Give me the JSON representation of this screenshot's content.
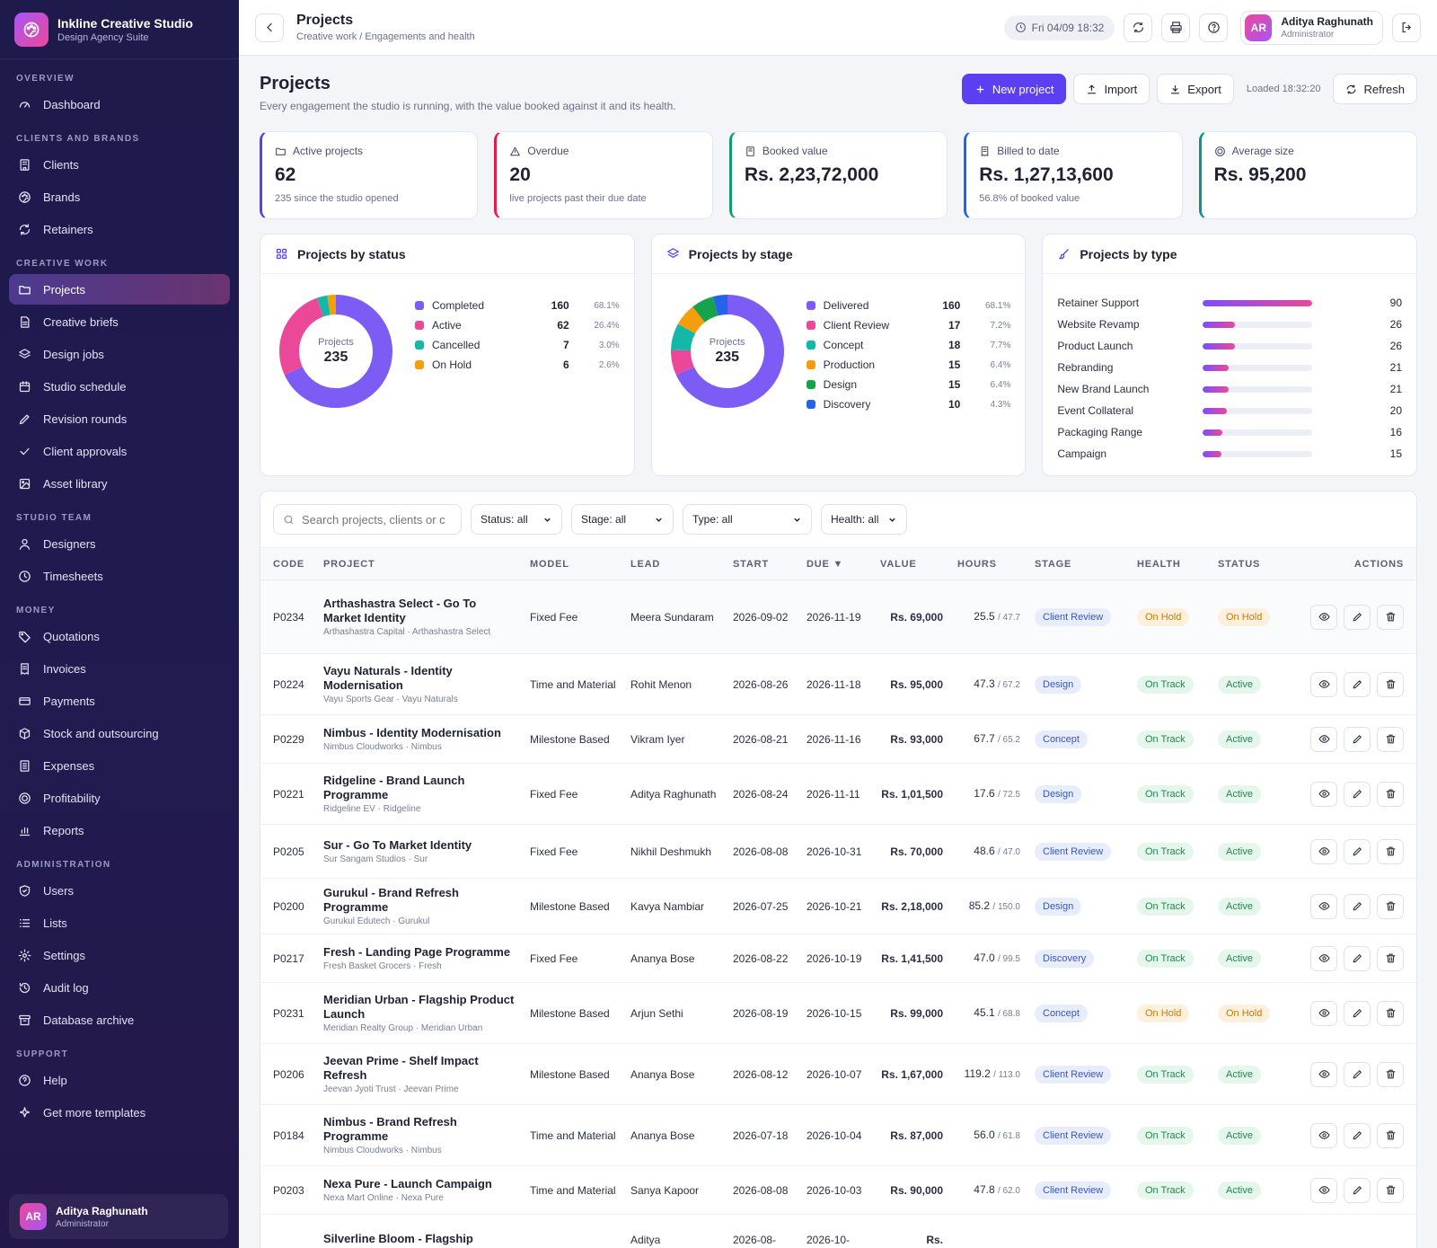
{
  "brand": {
    "name": "Inkline Creative Studio",
    "subtitle": "Design Agency Suite"
  },
  "sidebar": {
    "sections": [
      {
        "title": "OVERVIEW",
        "items": [
          {
            "label": "Dashboard",
            "icon": "gauge-icon"
          }
        ]
      },
      {
        "title": "CLIENTS AND BRANDS",
        "items": [
          {
            "label": "Clients",
            "icon": "building-icon"
          },
          {
            "label": "Brands",
            "icon": "palette-icon"
          },
          {
            "label": "Retainers",
            "icon": "repeat-icon"
          }
        ]
      },
      {
        "title": "CREATIVE WORK",
        "items": [
          {
            "label": "Projects",
            "icon": "folder-icon",
            "active": true
          },
          {
            "label": "Creative briefs",
            "icon": "document-icon"
          },
          {
            "label": "Design jobs",
            "icon": "layers-icon"
          },
          {
            "label": "Studio schedule",
            "icon": "calendar-icon"
          },
          {
            "label": "Revision rounds",
            "icon": "pencil-icon"
          },
          {
            "label": "Client approvals",
            "icon": "check-icon"
          },
          {
            "label": "Asset library",
            "icon": "image-icon"
          }
        ]
      },
      {
        "title": "STUDIO TEAM",
        "items": [
          {
            "label": "Designers",
            "icon": "user-icon"
          },
          {
            "label": "Timesheets",
            "icon": "clock-icon"
          }
        ]
      },
      {
        "title": "MONEY",
        "items": [
          {
            "label": "Quotations",
            "icon": "tag-icon"
          },
          {
            "label": "Invoices",
            "icon": "receipt-icon"
          },
          {
            "label": "Payments",
            "icon": "card-icon"
          },
          {
            "label": "Stock and outsourcing",
            "icon": "box-icon"
          },
          {
            "label": "Expenses",
            "icon": "list-doc-icon"
          },
          {
            "label": "Profitability",
            "icon": "target-icon"
          },
          {
            "label": "Reports",
            "icon": "bar-chart-icon"
          }
        ]
      },
      {
        "title": "ADMINISTRATION",
        "items": [
          {
            "label": "Users",
            "icon": "shield-icon"
          },
          {
            "label": "Lists",
            "icon": "list-icon"
          },
          {
            "label": "Settings",
            "icon": "gear-icon"
          },
          {
            "label": "Audit log",
            "icon": "history-icon"
          },
          {
            "label": "Database archive",
            "icon": "archive-icon"
          }
        ]
      },
      {
        "title": "SUPPORT",
        "items": [
          {
            "label": "Help",
            "icon": "help-icon"
          },
          {
            "label": "Get more templates",
            "icon": "sparkle-icon"
          }
        ]
      }
    ],
    "user": {
      "initials": "AR",
      "name": "Aditya Raghunath",
      "role": "Administrator"
    }
  },
  "topbar": {
    "title": "Projects",
    "breadcrumb": "Creative work / Engagements and health",
    "datetime": "Fri 04/09 18:32",
    "user": {
      "initials": "AR",
      "name": "Aditya Raghunath",
      "role": "Administrator"
    }
  },
  "page": {
    "title": "Projects",
    "subtitle": "Every engagement the studio is running, with the value booked against it and its health.",
    "new_label": "New project",
    "import_label": "Import",
    "export_label": "Export",
    "loaded": "Loaded 18:32:20",
    "refresh_label": "Refresh"
  },
  "kpis": [
    {
      "label": "Active projects",
      "value": "62",
      "note": "235 since the studio opened",
      "color": "#5b3ff0",
      "icon": "folder-icon"
    },
    {
      "label": "Overdue",
      "value": "20",
      "note": "live projects past their due date",
      "color": "#e11d48",
      "icon": "warning-icon"
    },
    {
      "label": "Booked value",
      "value": "Rs. 2,23,72,000",
      "note": "",
      "color": "#0f9f6e",
      "icon": "book-icon"
    },
    {
      "label": "Billed to date",
      "value": "Rs. 1,27,13,600",
      "note": "56.8% of booked value",
      "color": "#2563eb",
      "icon": "receipt-icon"
    },
    {
      "label": "Average size",
      "value": "Rs. 95,200",
      "note": "",
      "color": "#0d9488",
      "icon": "target-icon"
    }
  ],
  "status_panel": {
    "title": "Projects by status",
    "center_label": "Projects",
    "center_value": "235",
    "items": [
      {
        "name": "Completed",
        "value": 160,
        "pct": "68.1%",
        "color": "#7c5cf5"
      },
      {
        "name": "Active",
        "value": 62,
        "pct": "26.4%",
        "color": "#ec4899"
      },
      {
        "name": "Cancelled",
        "value": 7,
        "pct": "3.0%",
        "color": "#14b8a6"
      },
      {
        "name": "On Hold",
        "value": 6,
        "pct": "2.6%",
        "color": "#f59e0b"
      }
    ]
  },
  "stage_panel": {
    "title": "Projects by stage",
    "center_label": "Projects",
    "center_value": "235",
    "items": [
      {
        "name": "Delivered",
        "value": 160,
        "pct": "68.1%",
        "color": "#7c5cf5"
      },
      {
        "name": "Client Review",
        "value": 17,
        "pct": "7.2%",
        "color": "#ec4899"
      },
      {
        "name": "Concept",
        "value": 18,
        "pct": "7.7%",
        "color": "#14b8a6"
      },
      {
        "name": "Production",
        "value": 15,
        "pct": "6.4%",
        "color": "#f59e0b"
      },
      {
        "name": "Design",
        "value": 15,
        "pct": "6.4%",
        "color": "#16a34a"
      },
      {
        "name": "Discovery",
        "value": 10,
        "pct": "4.3%",
        "color": "#2563eb"
      }
    ]
  },
  "type_panel": {
    "title": "Projects by type",
    "max": 90,
    "items": [
      {
        "name": "Retainer Support",
        "value": 90
      },
      {
        "name": "Website Revamp",
        "value": 26
      },
      {
        "name": "Product Launch",
        "value": 26
      },
      {
        "name": "Rebranding",
        "value": 21
      },
      {
        "name": "New Brand Launch",
        "value": 21
      },
      {
        "name": "Event Collateral",
        "value": 20
      },
      {
        "name": "Packaging Range",
        "value": 16
      },
      {
        "name": "Campaign",
        "value": 15
      }
    ]
  },
  "filters": {
    "search_placeholder": "Search projects, clients or c",
    "status": "Status: all",
    "stage": "Stage: all",
    "type": "Type: all",
    "health": "Health: all"
  },
  "table": {
    "columns": [
      "CODE",
      "PROJECT",
      "MODEL",
      "LEAD",
      "START",
      "DUE ▼",
      "VALUE",
      "HOURS",
      "STAGE",
      "HEALTH",
      "STATUS",
      "ACTIONS"
    ],
    "rows": [
      {
        "code": "P0234",
        "name": "Arthashastra Select - Go To Market Identity",
        "client": "Arthashastra Capital · Arthashastra Select",
        "model": "Fixed Fee",
        "lead": "Meera Sundaram",
        "start": "2026-09-02",
        "due": "2026-11-19",
        "value": "Rs. 69,000",
        "hours": "25.5",
        "hours_of": "/ 47.7",
        "stage": "Client Review",
        "health": "On Hold",
        "status": "On Hold"
      },
      {
        "code": "P0224",
        "name": "Vayu Naturals - Identity Modernisation",
        "client": "Vayu Sports Gear · Vayu Naturals",
        "model": "Time and Material",
        "lead": "Rohit Menon",
        "start": "2026-08-26",
        "due": "2026-11-18",
        "value": "Rs. 95,000",
        "hours": "47.3",
        "hours_of": "/ 67.2",
        "stage": "Design",
        "health": "On Track",
        "status": "Active"
      },
      {
        "code": "P0229",
        "name": "Nimbus - Identity Modernisation",
        "client": "Nimbus Cloudworks · Nimbus",
        "model": "Milestone Based",
        "lead": "Vikram Iyer",
        "start": "2026-08-21",
        "due": "2026-11-16",
        "value": "Rs. 93,000",
        "hours": "67.7",
        "hours_of": "/ 65.2",
        "stage": "Concept",
        "health": "On Track",
        "status": "Active"
      },
      {
        "code": "P0221",
        "name": "Ridgeline - Brand Launch Programme",
        "client": "Ridgeline EV · Ridgeline",
        "model": "Fixed Fee",
        "lead": "Aditya Raghunath",
        "start": "2026-08-24",
        "due": "2026-11-11",
        "value": "Rs. 1,01,500",
        "hours": "17.6",
        "hours_of": "/ 72.5",
        "stage": "Design",
        "health": "On Track",
        "status": "Active"
      },
      {
        "code": "P0205",
        "name": "Sur - Go To Market Identity",
        "client": "Sur Sangam Studios · Sur",
        "model": "Fixed Fee",
        "lead": "Nikhil Deshmukh",
        "start": "2026-08-08",
        "due": "2026-10-31",
        "value": "Rs. 70,000",
        "hours": "48.6",
        "hours_of": "/ 47.0",
        "stage": "Client Review",
        "health": "On Track",
        "status": "Active"
      },
      {
        "code": "P0200",
        "name": "Gurukul - Brand Refresh Programme",
        "client": "Gurukul Edutech · Gurukul",
        "model": "Milestone Based",
        "lead": "Kavya Nambiar",
        "start": "2026-07-25",
        "due": "2026-10-21",
        "value": "Rs. 2,18,000",
        "hours": "85.2",
        "hours_of": "/ 150.0",
        "stage": "Design",
        "health": "On Track",
        "status": "Active"
      },
      {
        "code": "P0217",
        "name": "Fresh - Landing Page Programme",
        "client": "Fresh Basket Grocers · Fresh",
        "model": "Fixed Fee",
        "lead": "Ananya Bose",
        "start": "2026-08-22",
        "due": "2026-10-19",
        "value": "Rs. 1,41,500",
        "hours": "47.0",
        "hours_of": "/ 99.5",
        "stage": "Discovery",
        "health": "On Track",
        "status": "Active"
      },
      {
        "code": "P0231",
        "name": "Meridian Urban - Flagship Product Launch",
        "client": "Meridian Realty Group · Meridian Urban",
        "model": "Milestone Based",
        "lead": "Arjun Sethi",
        "start": "2026-08-19",
        "due": "2026-10-15",
        "value": "Rs. 99,000",
        "hours": "45.1",
        "hours_of": "/ 68.8",
        "stage": "Concept",
        "health": "On Hold",
        "status": "On Hold"
      },
      {
        "code": "P0206",
        "name": "Jeevan Prime - Shelf Impact Refresh",
        "client": "Jeevan Jyoti Trust · Jeevan Prime",
        "model": "Milestone Based",
        "lead": "Ananya Bose",
        "start": "2026-08-12",
        "due": "2026-10-07",
        "value": "Rs. 1,67,000",
        "hours": "119.2",
        "hours_of": "/ 113.0",
        "stage": "Client Review",
        "health": "On Track",
        "status": "Active"
      },
      {
        "code": "P0184",
        "name": "Nimbus - Brand Refresh Programme",
        "client": "Nimbus Cloudworks · Nimbus",
        "model": "Time and Material",
        "lead": "Ananya Bose",
        "start": "2026-07-18",
        "due": "2026-10-04",
        "value": "Rs. 87,000",
        "hours": "56.0",
        "hours_of": "/ 61.8",
        "stage": "Client Review",
        "health": "On Track",
        "status": "Active"
      },
      {
        "code": "P0203",
        "name": "Nexa Pure - Launch Campaign",
        "client": "Nexa Mart Online · Nexa Pure",
        "model": "Time and Material",
        "lead": "Sanya Kapoor",
        "start": "2026-08-08",
        "due": "2026-10-03",
        "value": "Rs. 90,000",
        "hours": "47.8",
        "hours_of": "/ 62.0",
        "stage": "Client Review",
        "health": "On Track",
        "status": "Active"
      },
      {
        "code": "",
        "name": "Silverline Bloom - Flagship",
        "client": "",
        "model": "",
        "lead": "Aditya",
        "start": "2026-08-",
        "due": "2026-10-",
        "value": "Rs.",
        "hours": "",
        "hours_of": "",
        "stage": "",
        "health": "",
        "status": ""
      }
    ]
  }
}
